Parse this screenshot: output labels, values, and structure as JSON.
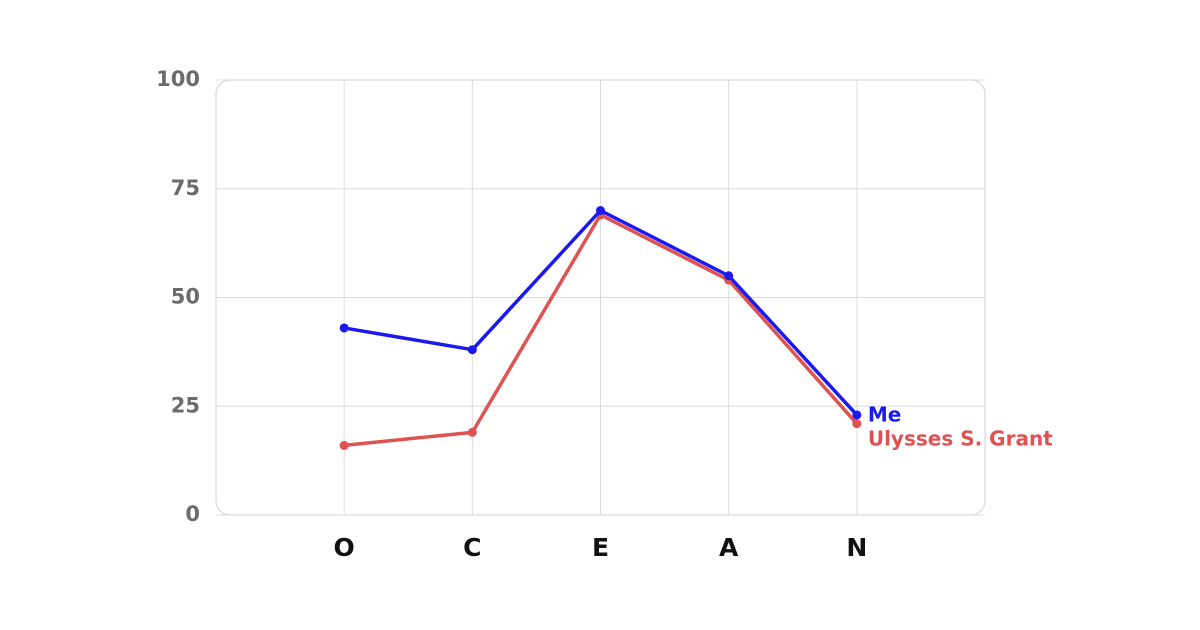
{
  "chart_data": {
    "type": "line",
    "categories": [
      "O",
      "C",
      "E",
      "A",
      "N"
    ],
    "series": [
      {
        "name": "Me",
        "color": "#1a1af0",
        "values": [
          43,
          38,
          70,
          55,
          23
        ]
      },
      {
        "name": "Ulysses S. Grant",
        "color": "#e05252",
        "values": [
          16,
          19,
          69,
          54,
          21
        ]
      }
    ],
    "ylim": [
      0,
      100
    ],
    "yticks": [
      0,
      25,
      50,
      75,
      100
    ],
    "grid": true
  }
}
